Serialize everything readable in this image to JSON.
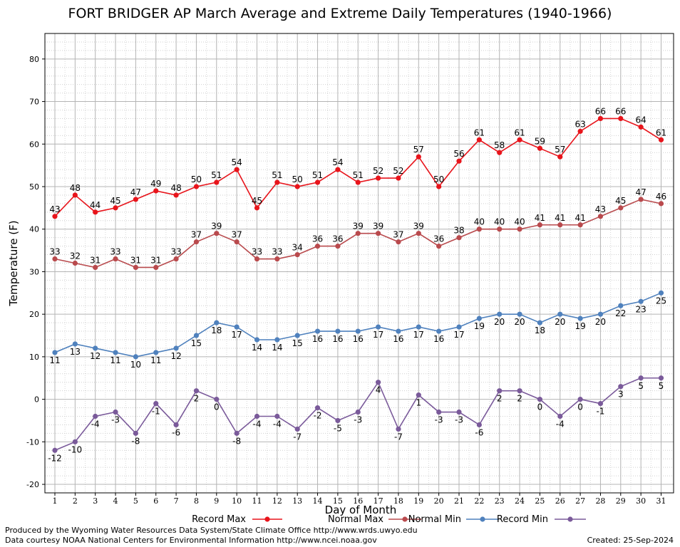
{
  "chart_data": {
    "type": "line",
    "title": "FORT BRIDGER AP March Average and Extreme Daily Temperatures (1940-1966)",
    "xlabel": "Day of Month",
    "ylabel": "Temperature (F)",
    "xlim": [
      1,
      31
    ],
    "ylim": [
      -22,
      86
    ],
    "y_ticks": [
      -20,
      -10,
      0,
      10,
      20,
      30,
      40,
      50,
      60,
      70,
      80
    ],
    "grid": true,
    "legend_position": "bottom",
    "categories": [
      "1",
      "2",
      "3",
      "4",
      "5",
      "6",
      "7",
      "8",
      "9",
      "10",
      "11",
      "12",
      "13",
      "14",
      "15",
      "16",
      "17",
      "18",
      "19",
      "20",
      "21",
      "22",
      "23",
      "24",
      "25",
      "26",
      "27",
      "28",
      "29",
      "30",
      "31"
    ],
    "series": [
      {
        "name": "Record Max",
        "color": "#e8141b",
        "label_position": "above",
        "values": [
          43,
          48,
          44,
          45,
          47,
          49,
          48,
          50,
          51,
          54,
          45,
          51,
          50,
          51,
          54,
          51,
          52,
          52,
          57,
          50,
          56,
          61,
          58,
          61,
          59,
          57,
          63,
          66,
          66,
          64,
          61
        ]
      },
      {
        "name": "Normal Max",
        "color": "#b94a4d",
        "label_position": "above",
        "values": [
          33,
          32,
          31,
          33,
          31,
          31,
          33,
          37,
          39,
          37,
          33,
          33,
          34,
          36,
          36,
          39,
          39,
          37,
          39,
          36,
          38,
          40,
          40,
          40,
          41,
          41,
          41,
          43,
          45,
          47,
          46
        ]
      },
      {
        "name": "Normal Min",
        "color": "#4f81bd",
        "label_position": "below",
        "values": [
          11,
          13,
          12,
          11,
          10,
          11,
          12,
          15,
          18,
          17,
          14,
          14,
          15,
          16,
          16,
          16,
          17,
          16,
          17,
          16,
          17,
          19,
          20,
          20,
          18,
          20,
          19,
          20,
          22,
          23,
          25
        ]
      },
      {
        "name": "Record Min",
        "color": "#7a5a9a",
        "label_position": "below",
        "values": [
          -12,
          -10,
          -4,
          -3,
          -8,
          -1,
          -6,
          2,
          0,
          -8,
          -4,
          -4,
          -7,
          -2,
          -5,
          -3,
          4,
          -7,
          1,
          -3,
          -3,
          -6,
          2,
          2,
          0,
          -4,
          0,
          -1,
          3,
          5,
          5
        ]
      }
    ]
  },
  "footer": {
    "produced": "Produced by the Wyoming Water Resources Data System/State Climate Office http://www.wrds.uwyo.edu",
    "courtesy": "Data courtesy NOAA National Centers for Environmental Information http://www.ncei.noaa.gov",
    "created": "Created:  25-Sep-2024"
  }
}
